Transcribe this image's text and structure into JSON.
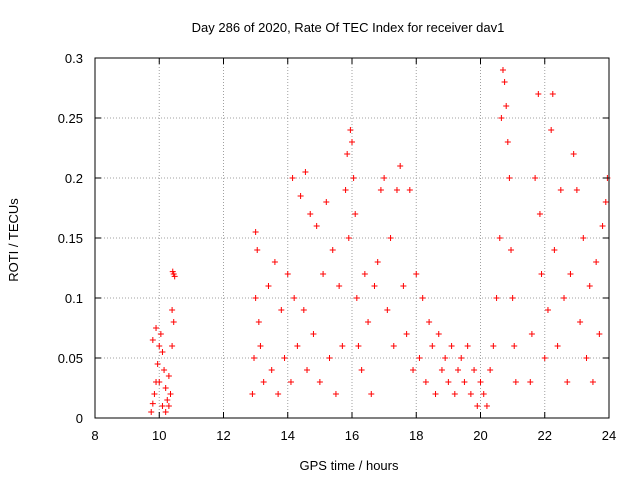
{
  "chart_data": {
    "type": "scatter",
    "title": "Day 286 of 2020, Rate Of TEC Index for receiver dav1",
    "xlabel": "GPS time / hours",
    "ylabel": "ROTI / TECUs",
    "xlim": [
      8,
      24
    ],
    "ylim": [
      0,
      0.3
    ],
    "xticks": [
      8,
      10,
      12,
      14,
      16,
      18,
      20,
      22,
      24
    ],
    "xtick_labels": [
      "8",
      "10",
      "12",
      "14",
      "16",
      "18",
      "20",
      "22",
      "24"
    ],
    "yticks": [
      0,
      0.05,
      0.1,
      0.15,
      0.2,
      0.25,
      0.3
    ],
    "ytick_labels": [
      "0",
      "0.05",
      "0.1",
      "0.15",
      "0.2",
      "0.25",
      "0.3"
    ],
    "grid": true,
    "marker": "plus",
    "color": "#ff0000",
    "series": [
      {
        "points": [
          [
            9.75,
            0.005
          ],
          [
            9.8,
            0.012
          ],
          [
            9.85,
            0.02
          ],
          [
            9.9,
            0.03
          ],
          [
            9.95,
            0.045
          ],
          [
            10.0,
            0.06
          ],
          [
            10.05,
            0.07
          ],
          [
            10.1,
            0.055
          ],
          [
            10.15,
            0.04
          ],
          [
            10.2,
            0.025
          ],
          [
            10.25,
            0.015
          ],
          [
            10.3,
            0.01
          ],
          [
            10.35,
            0.02
          ],
          [
            10.4,
            0.06
          ],
          [
            10.45,
            0.08
          ],
          [
            10.45,
            0.12
          ],
          [
            10.42,
            0.122
          ],
          [
            10.48,
            0.118
          ],
          [
            9.8,
            0.065
          ],
          [
            9.9,
            0.075
          ],
          [
            10.0,
            0.03
          ],
          [
            10.1,
            0.01
          ],
          [
            10.2,
            0.005
          ],
          [
            10.3,
            0.035
          ],
          [
            10.4,
            0.09
          ],
          [
            12.9,
            0.02
          ],
          [
            12.95,
            0.05
          ],
          [
            13.0,
            0.1
          ],
          [
            13.0,
            0.155
          ],
          [
            13.05,
            0.14
          ],
          [
            13.1,
            0.08
          ],
          [
            13.15,
            0.06
          ],
          [
            13.25,
            0.03
          ],
          [
            13.4,
            0.11
          ],
          [
            13.5,
            0.04
          ],
          [
            13.6,
            0.13
          ],
          [
            13.7,
            0.02
          ],
          [
            13.8,
            0.09
          ],
          [
            13.9,
            0.05
          ],
          [
            14.0,
            0.12
          ],
          [
            14.1,
            0.03
          ],
          [
            14.15,
            0.2
          ],
          [
            14.2,
            0.1
          ],
          [
            14.3,
            0.06
          ],
          [
            14.4,
            0.185
          ],
          [
            14.5,
            0.09
          ],
          [
            14.55,
            0.205
          ],
          [
            14.6,
            0.04
          ],
          [
            14.7,
            0.17
          ],
          [
            14.8,
            0.07
          ],
          [
            14.9,
            0.16
          ],
          [
            15.0,
            0.03
          ],
          [
            15.1,
            0.12
          ],
          [
            15.2,
            0.18
          ],
          [
            15.3,
            0.05
          ],
          [
            15.4,
            0.14
          ],
          [
            15.5,
            0.02
          ],
          [
            15.6,
            0.11
          ],
          [
            15.7,
            0.06
          ],
          [
            15.8,
            0.19
          ],
          [
            15.85,
            0.22
          ],
          [
            15.9,
            0.15
          ],
          [
            15.95,
            0.24
          ],
          [
            16.0,
            0.23
          ],
          [
            16.05,
            0.2
          ],
          [
            16.1,
            0.17
          ],
          [
            16.15,
            0.1
          ],
          [
            16.2,
            0.06
          ],
          [
            16.3,
            0.04
          ],
          [
            16.4,
            0.12
          ],
          [
            16.5,
            0.08
          ],
          [
            16.6,
            0.02
          ],
          [
            16.7,
            0.11
          ],
          [
            16.8,
            0.13
          ],
          [
            16.9,
            0.19
          ],
          [
            17.0,
            0.2
          ],
          [
            17.1,
            0.09
          ],
          [
            17.2,
            0.15
          ],
          [
            17.3,
            0.06
          ],
          [
            17.4,
            0.19
          ],
          [
            17.5,
            0.21
          ],
          [
            17.6,
            0.11
          ],
          [
            17.7,
            0.07
          ],
          [
            17.8,
            0.19
          ],
          [
            17.9,
            0.04
          ],
          [
            18.0,
            0.12
          ],
          [
            18.1,
            0.05
          ],
          [
            18.2,
            0.1
          ],
          [
            18.3,
            0.03
          ],
          [
            18.4,
            0.08
          ],
          [
            18.5,
            0.06
          ],
          [
            18.6,
            0.02
          ],
          [
            18.7,
            0.07
          ],
          [
            18.8,
            0.04
          ],
          [
            18.9,
            0.05
          ],
          [
            19.0,
            0.03
          ],
          [
            19.1,
            0.06
          ],
          [
            19.2,
            0.02
          ],
          [
            19.3,
            0.04
          ],
          [
            19.4,
            0.05
          ],
          [
            19.5,
            0.03
          ],
          [
            19.6,
            0.06
          ],
          [
            19.7,
            0.02
          ],
          [
            19.8,
            0.04
          ],
          [
            19.9,
            0.01
          ],
          [
            20.0,
            0.03
          ],
          [
            20.1,
            0.02
          ],
          [
            20.2,
            0.01
          ],
          [
            20.3,
            0.04
          ],
          [
            20.4,
            0.06
          ],
          [
            20.5,
            0.1
          ],
          [
            20.6,
            0.15
          ],
          [
            20.65,
            0.25
          ],
          [
            20.7,
            0.29
          ],
          [
            20.75,
            0.28
          ],
          [
            20.8,
            0.26
          ],
          [
            20.85,
            0.23
          ],
          [
            20.9,
            0.2
          ],
          [
            20.95,
            0.14
          ],
          [
            21.0,
            0.1
          ],
          [
            21.05,
            0.06
          ],
          [
            21.1,
            0.03
          ],
          [
            21.55,
            0.03
          ],
          [
            21.6,
            0.07
          ],
          [
            21.7,
            0.2
          ],
          [
            21.8,
            0.27
          ],
          [
            21.85,
            0.17
          ],
          [
            21.9,
            0.12
          ],
          [
            22.0,
            0.05
          ],
          [
            22.1,
            0.09
          ],
          [
            22.2,
            0.24
          ],
          [
            22.25,
            0.27
          ],
          [
            22.3,
            0.14
          ],
          [
            22.4,
            0.06
          ],
          [
            22.5,
            0.19
          ],
          [
            22.6,
            0.1
          ],
          [
            22.7,
            0.03
          ],
          [
            22.8,
            0.12
          ],
          [
            22.9,
            0.22
          ],
          [
            23.0,
            0.19
          ],
          [
            23.1,
            0.08
          ],
          [
            23.2,
            0.15
          ],
          [
            23.3,
            0.05
          ],
          [
            23.4,
            0.11
          ],
          [
            23.5,
            0.03
          ],
          [
            23.6,
            0.13
          ],
          [
            23.7,
            0.07
          ],
          [
            23.8,
            0.16
          ],
          [
            23.9,
            0.18
          ],
          [
            23.95,
            0.2
          ]
        ]
      }
    ]
  }
}
